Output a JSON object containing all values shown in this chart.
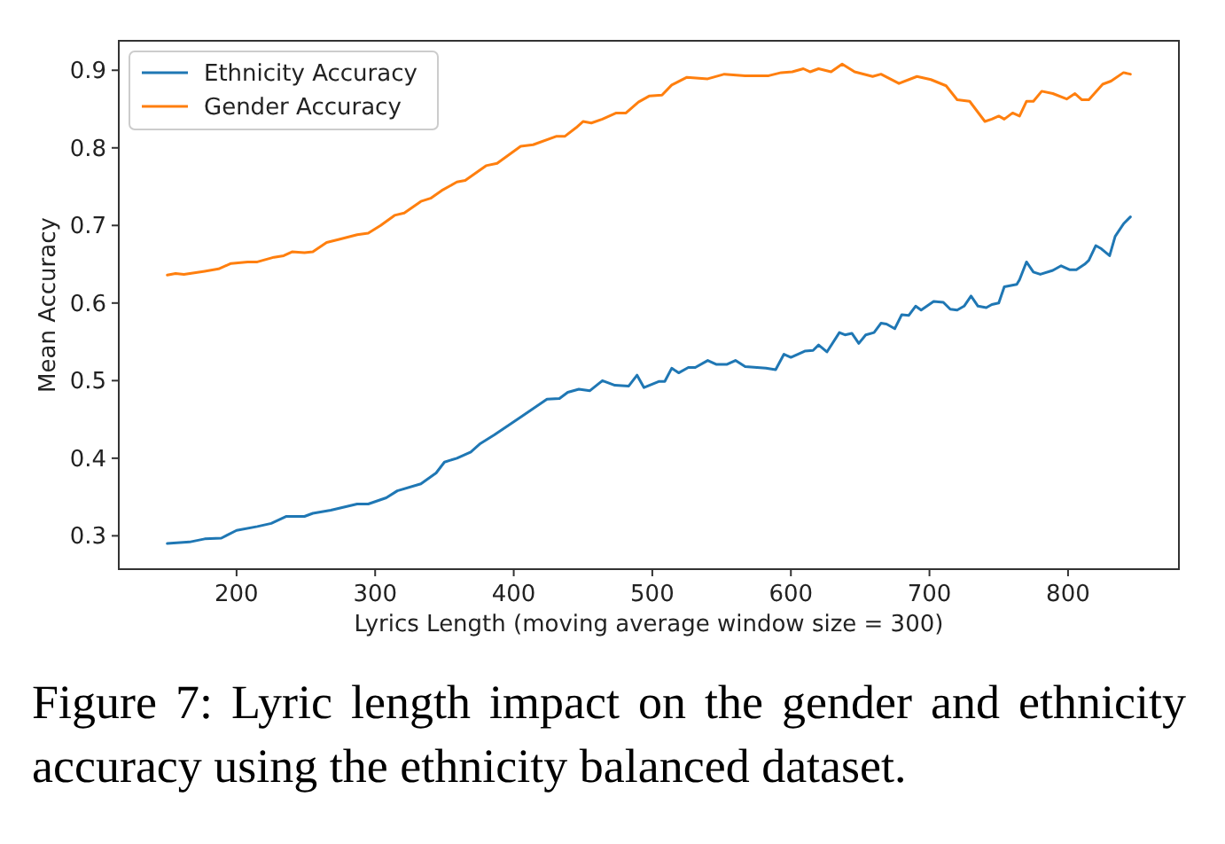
{
  "chart_data": {
    "type": "line",
    "xlabel": "Lyrics Length (moving average window size = 300)",
    "ylabel": "Mean Accuracy",
    "annotations": [
      "Figure 7: Lyric length impact on the gender and ethnicity accuracy using the ethnicity balanced dataset."
    ],
    "xlim": [
      115,
      880
    ],
    "ylim": [
      0.257,
      0.938
    ],
    "xticks": [
      200,
      300,
      400,
      500,
      600,
      700,
      800
    ],
    "yticks": [
      0.3,
      0.4,
      0.5,
      0.6,
      0.7,
      0.8,
      0.9
    ],
    "grid": false,
    "legend": "top left",
    "line_style": "solid",
    "marker": "none",
    "series": [
      {
        "name": "Ethnicity Accuracy",
        "color": "#1f77b4",
        "x": [
          150,
          166,
          177,
          189,
          200,
          215,
          225,
          236,
          249,
          255,
          268,
          287,
          295,
          308,
          316,
          333,
          344,
          350,
          359,
          369,
          376,
          386,
          405,
          424,
          433,
          439,
          447,
          455,
          464,
          473,
          483,
          489,
          494,
          505,
          509,
          514,
          519,
          526,
          531,
          540,
          546,
          554,
          560,
          567,
          582,
          589,
          595,
          600,
          610,
          616,
          620,
          626,
          635,
          639,
          644,
          649,
          654,
          660,
          665,
          669,
          675,
          680,
          685,
          690,
          694,
          703,
          710,
          715,
          720,
          725,
          730,
          735,
          741,
          745,
          750,
          754,
          763,
          765,
          770,
          775,
          780,
          789,
          795,
          801,
          806,
          812,
          815,
          820,
          824,
          830,
          834,
          840,
          845
        ],
        "values": [
          0.29,
          0.292,
          0.296,
          0.297,
          0.307,
          0.312,
          0.316,
          0.325,
          0.325,
          0.329,
          0.333,
          0.341,
          0.341,
          0.349,
          0.358,
          0.367,
          0.381,
          0.395,
          0.4,
          0.408,
          0.419,
          0.43,
          0.453,
          0.476,
          0.477,
          0.485,
          0.489,
          0.487,
          0.5,
          0.494,
          0.493,
          0.507,
          0.491,
          0.499,
          0.499,
          0.516,
          0.51,
          0.517,
          0.517,
          0.526,
          0.521,
          0.521,
          0.526,
          0.518,
          0.516,
          0.514,
          0.534,
          0.53,
          0.538,
          0.539,
          0.546,
          0.537,
          0.562,
          0.559,
          0.561,
          0.548,
          0.559,
          0.562,
          0.574,
          0.573,
          0.567,
          0.585,
          0.584,
          0.596,
          0.591,
          0.602,
          0.601,
          0.592,
          0.591,
          0.596,
          0.609,
          0.596,
          0.594,
          0.598,
          0.6,
          0.621,
          0.624,
          0.63,
          0.653,
          0.64,
          0.637,
          0.642,
          0.648,
          0.643,
          0.643,
          0.65,
          0.655,
          0.674,
          0.67,
          0.661,
          0.686,
          0.702,
          0.711
        ]
      },
      {
        "name": "Gender Accuracy",
        "color": "#ff7f0e",
        "x": [
          150,
          156,
          162,
          177,
          187,
          196,
          208,
          215,
          227,
          234,
          240,
          249,
          255,
          265,
          274,
          287,
          295,
          304,
          314,
          321,
          333,
          340,
          348,
          359,
          365,
          380,
          388,
          405,
          414,
          431,
          437,
          445,
          450,
          456,
          464,
          474,
          481,
          490,
          498,
          507,
          514,
          525,
          540,
          552,
          567,
          584,
          593,
          601,
          609,
          614,
          620,
          629,
          637,
          646,
          659,
          665,
          678,
          691,
          701,
          712,
          720,
          729,
          740,
          745,
          750,
          754,
          760,
          765,
          770,
          775,
          781,
          789,
          799,
          805,
          810,
          815,
          825,
          831,
          840,
          845
        ],
        "values": [
          0.636,
          0.638,
          0.637,
          0.641,
          0.644,
          0.651,
          0.653,
          0.653,
          0.659,
          0.661,
          0.666,
          0.665,
          0.666,
          0.678,
          0.682,
          0.688,
          0.69,
          0.7,
          0.713,
          0.716,
          0.731,
          0.735,
          0.745,
          0.756,
          0.758,
          0.777,
          0.78,
          0.802,
          0.804,
          0.815,
          0.815,
          0.826,
          0.834,
          0.832,
          0.837,
          0.845,
          0.845,
          0.859,
          0.867,
          0.868,
          0.881,
          0.891,
          0.889,
          0.895,
          0.893,
          0.893,
          0.897,
          0.898,
          0.902,
          0.898,
          0.902,
          0.898,
          0.908,
          0.898,
          0.892,
          0.895,
          0.883,
          0.892,
          0.888,
          0.88,
          0.862,
          0.86,
          0.834,
          0.837,
          0.841,
          0.837,
          0.845,
          0.841,
          0.86,
          0.86,
          0.873,
          0.87,
          0.863,
          0.87,
          0.862,
          0.862,
          0.882,
          0.886,
          0.897,
          0.895
        ]
      }
    ]
  }
}
